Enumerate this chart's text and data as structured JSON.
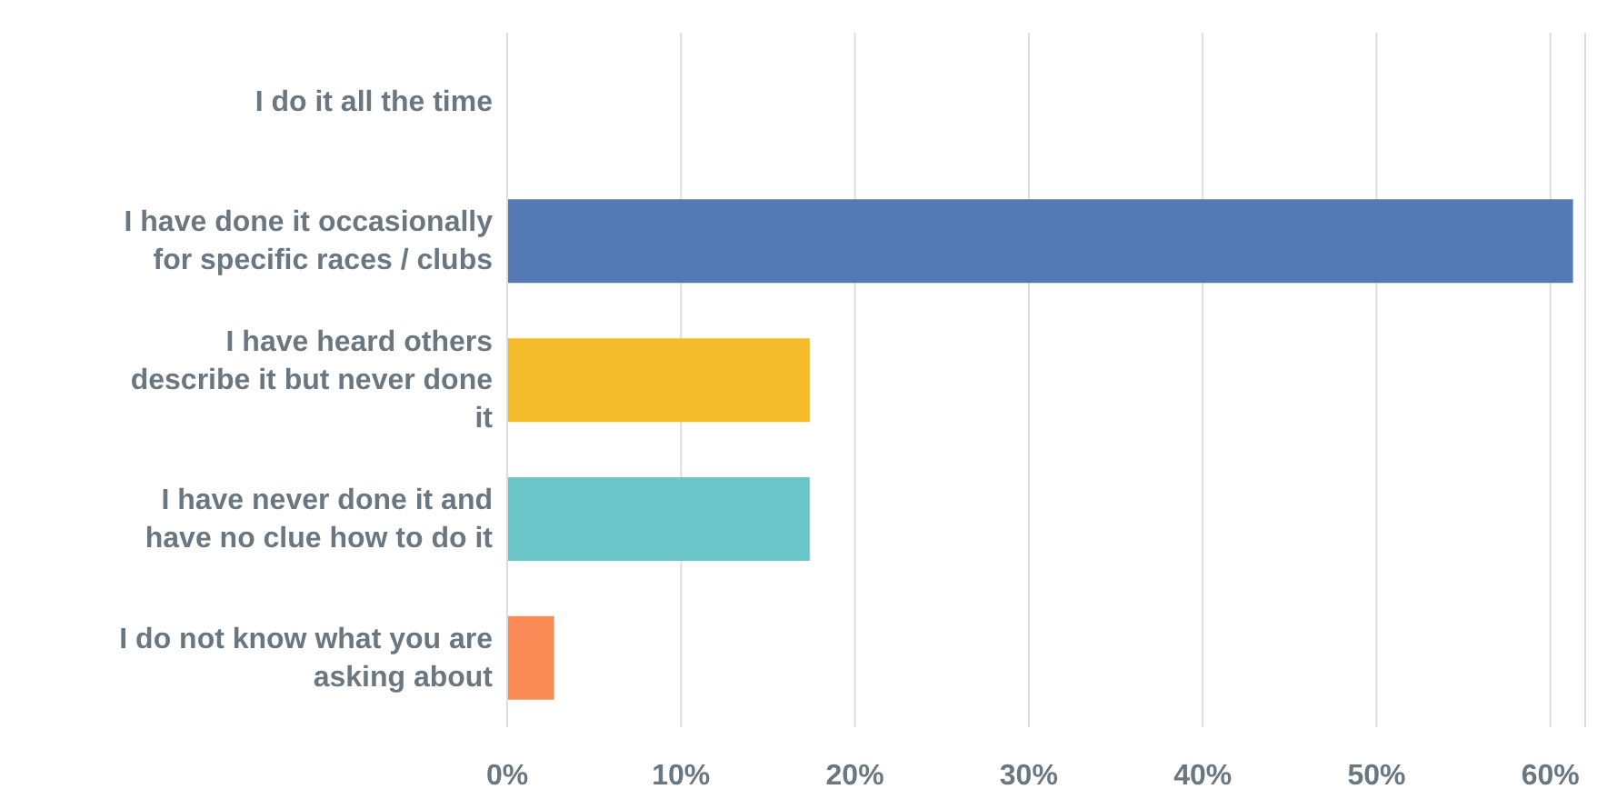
{
  "chart_data": {
    "type": "bar",
    "orientation": "horizontal",
    "categories": [
      "I do it all the time",
      "I have done it occasionally for specific races / clubs",
      "I have heard others describe it but never done it",
      "I have never done it and have no clue how to do it",
      "I do not know what you are asking about"
    ],
    "values": [
      0,
      61.3,
      17.4,
      17.4,
      2.7
    ],
    "colors": [
      "#5579b5",
      "#5579b5",
      "#f4bb2b",
      "#6cc5c9",
      "#f98a56"
    ],
    "xlim": [
      0,
      62
    ],
    "xticks": [
      {
        "value": 0,
        "label": "0%"
      },
      {
        "value": 10,
        "label": "10%"
      },
      {
        "value": 20,
        "label": "20%"
      },
      {
        "value": 30,
        "label": "30%"
      },
      {
        "value": 40,
        "label": "40%"
      },
      {
        "value": 50,
        "label": "50%"
      },
      {
        "value": 60,
        "label": "60%"
      }
    ],
    "grid": "x"
  }
}
